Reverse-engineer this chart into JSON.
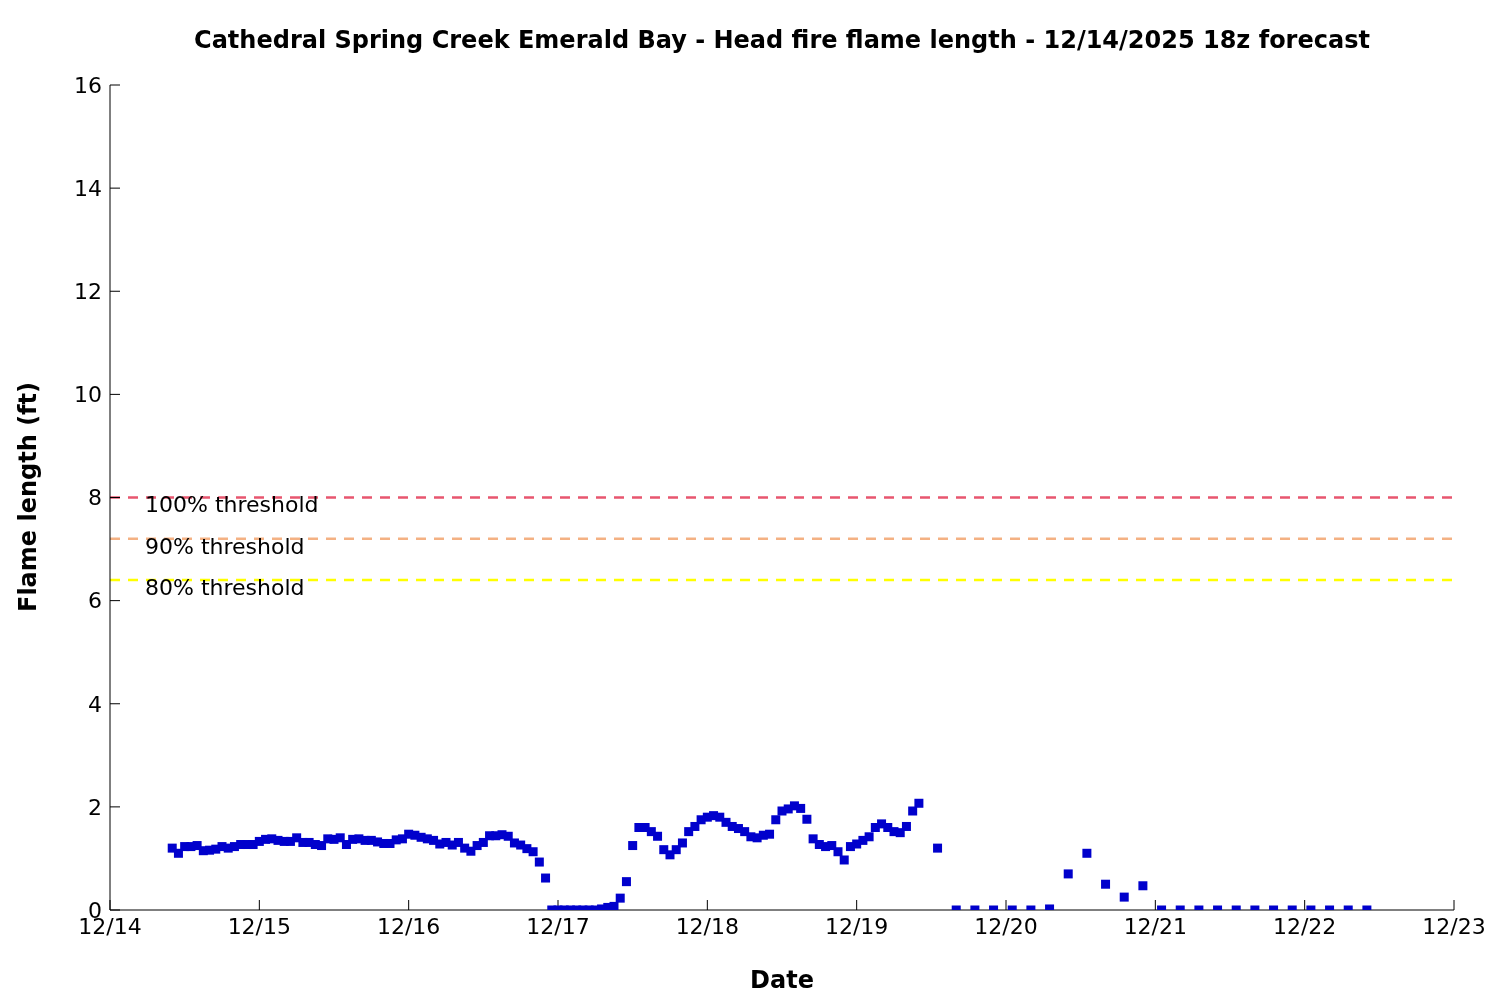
{
  "chart_data": {
    "type": "scatter",
    "title": "Cathedral Spring Creek Emerald Bay - Head fire flame length - 12/14/2025 18z forecast",
    "xlabel": "Date",
    "ylabel": "Flame length (ft)",
    "x": [
      "2025-12-14T10:00",
      "2025-12-14T11:00",
      "2025-12-14T12:00",
      "2025-12-14T13:00",
      "2025-12-14T14:00",
      "2025-12-14T15:00",
      "2025-12-14T16:00",
      "2025-12-14T17:00",
      "2025-12-14T18:00",
      "2025-12-14T19:00",
      "2025-12-14T20:00",
      "2025-12-14T21:00",
      "2025-12-14T22:00",
      "2025-12-14T23:00",
      "2025-12-15T00:00",
      "2025-12-15T01:00",
      "2025-12-15T02:00",
      "2025-12-15T03:00",
      "2025-12-15T04:00",
      "2025-12-15T05:00",
      "2025-12-15T06:00",
      "2025-12-15T07:00",
      "2025-12-15T08:00",
      "2025-12-15T09:00",
      "2025-12-15T10:00",
      "2025-12-15T11:00",
      "2025-12-15T12:00",
      "2025-12-15T13:00",
      "2025-12-15T14:00",
      "2025-12-15T15:00",
      "2025-12-15T16:00",
      "2025-12-15T17:00",
      "2025-12-15T18:00",
      "2025-12-15T19:00",
      "2025-12-15T20:00",
      "2025-12-15T21:00",
      "2025-12-15T22:00",
      "2025-12-15T23:00",
      "2025-12-16T00:00",
      "2025-12-16T01:00",
      "2025-12-16T02:00",
      "2025-12-16T03:00",
      "2025-12-16T04:00",
      "2025-12-16T05:00",
      "2025-12-16T06:00",
      "2025-12-16T07:00",
      "2025-12-16T08:00",
      "2025-12-16T09:00",
      "2025-12-16T10:00",
      "2025-12-16T11:00",
      "2025-12-16T12:00",
      "2025-12-16T13:00",
      "2025-12-16T14:00",
      "2025-12-16T15:00",
      "2025-12-16T16:00",
      "2025-12-16T17:00",
      "2025-12-16T18:00",
      "2025-12-16T19:00",
      "2025-12-16T20:00",
      "2025-12-16T21:00",
      "2025-12-16T22:00",
      "2025-12-16T23:00",
      "2025-12-17T00:00",
      "2025-12-17T01:00",
      "2025-12-17T02:00",
      "2025-12-17T03:00",
      "2025-12-17T04:00",
      "2025-12-17T05:00",
      "2025-12-17T06:00",
      "2025-12-17T07:00",
      "2025-12-17T08:00",
      "2025-12-17T09:00",
      "2025-12-17T10:00",
      "2025-12-17T11:00",
      "2025-12-17T12:00",
      "2025-12-17T13:00",
      "2025-12-17T14:00",
      "2025-12-17T15:00",
      "2025-12-17T16:00",
      "2025-12-17T17:00",
      "2025-12-17T18:00",
      "2025-12-17T19:00",
      "2025-12-17T20:00",
      "2025-12-17T21:00",
      "2025-12-17T22:00",
      "2025-12-17T23:00",
      "2025-12-18T00:00",
      "2025-12-18T01:00",
      "2025-12-18T02:00",
      "2025-12-18T03:00",
      "2025-12-18T04:00",
      "2025-12-18T05:00",
      "2025-12-18T06:00",
      "2025-12-18T07:00",
      "2025-12-18T08:00",
      "2025-12-18T09:00",
      "2025-12-18T10:00",
      "2025-12-18T11:00",
      "2025-12-18T12:00",
      "2025-12-18T13:00",
      "2025-12-18T14:00",
      "2025-12-18T15:00",
      "2025-12-18T16:00",
      "2025-12-18T17:00",
      "2025-12-18T18:00",
      "2025-12-18T19:00",
      "2025-12-18T20:00",
      "2025-12-18T21:00",
      "2025-12-18T22:00",
      "2025-12-18T23:00",
      "2025-12-19T00:00",
      "2025-12-19T01:00",
      "2025-12-19T02:00",
      "2025-12-19T03:00",
      "2025-12-19T04:00",
      "2025-12-19T05:00",
      "2025-12-19T06:00",
      "2025-12-19T07:00",
      "2025-12-19T08:00",
      "2025-12-19T09:00",
      "2025-12-19T10:00",
      "2025-12-19T13:00",
      "2025-12-19T16:00",
      "2025-12-19T19:00",
      "2025-12-19T22:00",
      "2025-12-20T01:00",
      "2025-12-20T04:00",
      "2025-12-20T07:00",
      "2025-12-20T10:00",
      "2025-12-20T13:00",
      "2025-12-20T16:00",
      "2025-12-20T19:00",
      "2025-12-20T22:00",
      "2025-12-21T01:00",
      "2025-12-21T04:00",
      "2025-12-21T07:00",
      "2025-12-21T10:00",
      "2025-12-21T13:00",
      "2025-12-21T16:00",
      "2025-12-21T19:00",
      "2025-12-21T22:00",
      "2025-12-22T01:00",
      "2025-12-22T04:00",
      "2025-12-22T07:00",
      "2025-12-22T10:00"
    ],
    "values": [
      1.2,
      1.1,
      1.23,
      1.23,
      1.25,
      1.15,
      1.16,
      1.18,
      1.23,
      1.2,
      1.23,
      1.27,
      1.27,
      1.27,
      1.33,
      1.37,
      1.38,
      1.35,
      1.33,
      1.33,
      1.4,
      1.31,
      1.31,
      1.27,
      1.25,
      1.38,
      1.37,
      1.4,
      1.27,
      1.37,
      1.38,
      1.35,
      1.35,
      1.32,
      1.29,
      1.29,
      1.36,
      1.38,
      1.47,
      1.45,
      1.41,
      1.38,
      1.35,
      1.28,
      1.31,
      1.26,
      1.31,
      1.2,
      1.14,
      1.25,
      1.31,
      1.44,
      1.44,
      1.46,
      1.43,
      1.3,
      1.26,
      1.19,
      1.13,
      0.93,
      0.62,
      0,
      0,
      0,
      0,
      0,
      0,
      0,
      0,
      0.02,
      0.05,
      0.07,
      0.23,
      0.55,
      1.25,
      1.6,
      1.6,
      1.52,
      1.43,
      1.17,
      1.07,
      1.17,
      1.3,
      1.52,
      1.62,
      1.75,
      1.8,
      1.83,
      1.8,
      1.7,
      1.62,
      1.58,
      1.52,
      1.42,
      1.4,
      1.45,
      1.47,
      1.75,
      1.92,
      1.96,
      2.02,
      1.97,
      1.76,
      1.38,
      1.27,
      1.23,
      1.25,
      1.13,
      0.97,
      1.23,
      1.28,
      1.35,
      1.42,
      1.6,
      1.67,
      1.6,
      1.52,
      1.5,
      1.62,
      1.92,
      2.07,
      1.2,
      0,
      0,
      0,
      0,
      0,
      0.02,
      0.7,
      1.1,
      0.5,
      0.25,
      0.47,
      0,
      0,
      0,
      0,
      0,
      0,
      0,
      0,
      0,
      0,
      0,
      0
    ],
    "color": "#0000cc",
    "marker": "square",
    "grid": false,
    "legend": false,
    "xlim": [
      "2025-12-14",
      "2025-12-23"
    ],
    "xticks": [
      {
        "value": "2025-12-14",
        "label": "12/14"
      },
      {
        "value": "2025-12-15",
        "label": "12/15"
      },
      {
        "value": "2025-12-16",
        "label": "12/16"
      },
      {
        "value": "2025-12-17",
        "label": "12/17"
      },
      {
        "value": "2025-12-18",
        "label": "12/18"
      },
      {
        "value": "2025-12-19",
        "label": "12/19"
      },
      {
        "value": "2025-12-20",
        "label": "12/20"
      },
      {
        "value": "2025-12-21",
        "label": "12/21"
      },
      {
        "value": "2025-12-22",
        "label": "12/22"
      },
      {
        "value": "2025-12-23",
        "label": "12/23"
      }
    ],
    "ylim": [
      0,
      16
    ],
    "yticks": [
      0,
      2,
      4,
      6,
      8,
      10,
      12,
      14,
      16
    ],
    "ref_lines": [
      {
        "axis": "y",
        "value": 8,
        "label": "100% threshold",
        "color": "#e8566f",
        "line_style": "dashed"
      },
      {
        "axis": "y",
        "value": 7.2,
        "label": "90% threshold",
        "color": "#f4b183",
        "line_style": "dashed"
      },
      {
        "axis": "y",
        "value": 6.4,
        "label": "80% threshold",
        "color": "#ffff00",
        "line_style": "dashed"
      }
    ]
  }
}
